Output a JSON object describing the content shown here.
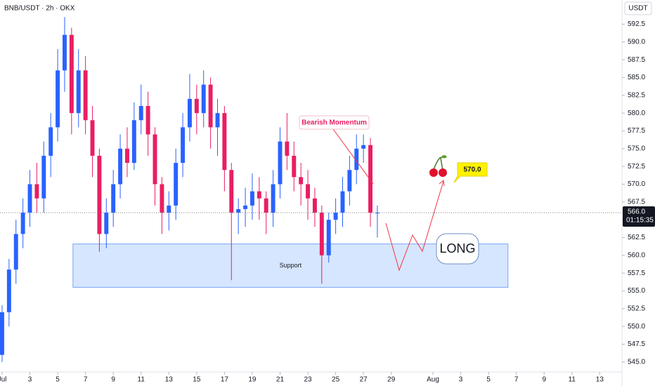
{
  "chart_data": {
    "type": "candlestick",
    "title": "BNB/USDT · 2h · OKX",
    "currency": "USDT",
    "up_color": "#2962ff",
    "down_color": "#e91e63",
    "x": [
      1,
      1.5,
      2,
      2.5,
      3,
      3.5,
      4,
      4.5,
      5,
      5.5,
      6,
      6.5,
      7,
      7.5,
      8,
      8.5,
      9,
      9.5,
      10,
      10.5,
      11,
      11.5,
      12,
      12.5,
      13,
      13.5,
      14,
      14.5,
      15,
      15.5,
      16,
      16.5,
      17,
      17.5,
      18,
      18.5,
      19,
      19.5,
      20,
      20.5,
      21,
      21.5,
      22,
      22.5,
      23,
      23.5,
      24,
      24.5,
      25,
      25.5,
      26,
      26.5,
      27,
      27.5,
      28
    ],
    "open": [
      546,
      552,
      558,
      563,
      566,
      570,
      568,
      574,
      578,
      586,
      591,
      580,
      586,
      579,
      574,
      563,
      566,
      570,
      575,
      573,
      579,
      581,
      577,
      570,
      566,
      567,
      573,
      578,
      582,
      580,
      584,
      578,
      580,
      572,
      566,
      566.5,
      567,
      569,
      568,
      566,
      570,
      576,
      574,
      571,
      570,
      568,
      566,
      560,
      565,
      566,
      569,
      572,
      575,
      575.5,
      566
    ],
    "high": [
      553,
      559.5,
      565,
      568,
      572,
      573,
      576,
      580,
      589,
      593.5,
      592,
      589,
      588,
      581,
      575,
      568,
      572,
      577,
      578,
      581.5,
      584,
      583,
      578,
      571,
      569,
      575,
      580,
      585.5,
      584,
      586,
      585,
      582,
      581,
      573,
      568,
      569.5,
      571.5,
      571,
      569,
      572,
      578,
      580,
      576,
      573,
      572,
      569.5,
      567,
      566,
      568,
      571,
      574,
      577,
      577,
      576.5,
      567
    ],
    "low": [
      545,
      550,
      556,
      561,
      564,
      566,
      566,
      571,
      576,
      583,
      577,
      578,
      577,
      571,
      560.5,
      561,
      564,
      568,
      571,
      572,
      577,
      574,
      567,
      563,
      563.5,
      565,
      571,
      576,
      577,
      578,
      575,
      574,
      569,
      556.5,
      563,
      564,
      565,
      565,
      563,
      564,
      568,
      572,
      569,
      567,
      565,
      564,
      556,
      559,
      563,
      564,
      567,
      570,
      573,
      564,
      562.5
    ],
    "close": [
      552,
      558,
      563,
      566,
      570,
      568,
      574,
      578,
      586,
      591,
      580,
      586,
      579,
      574,
      563,
      566,
      570,
      575,
      573,
      579,
      581,
      577,
      570,
      566,
      567,
      573,
      578,
      582,
      580,
      584,
      578,
      580,
      572,
      566,
      566.5,
      567,
      569,
      568,
      566,
      570,
      576,
      574,
      571,
      570,
      568,
      566,
      560,
      565,
      566,
      569,
      572,
      575,
      575.5,
      566,
      566
    ],
    "xlim": [
      0.85,
      45.6
    ],
    "ylim": [
      543.6,
      595.9
    ],
    "xticks": [
      {
        "value": 1,
        "label": "Jul"
      },
      3,
      5,
      7,
      9,
      11,
      13,
      15,
      17,
      19,
      21,
      23,
      25,
      27,
      29,
      {
        "value": 32,
        "label": "Aug"
      },
      {
        "value": 34,
        "label": "3"
      },
      {
        "value": 36,
        "label": "5"
      },
      {
        "value": 38,
        "label": "7"
      },
      {
        "value": 40,
        "label": "9"
      },
      {
        "value": 42,
        "label": "11"
      },
      {
        "value": 44,
        "label": "13"
      }
    ],
    "yticks": [
      592.5,
      {
        "value": 590,
        "label": "590.0"
      },
      587.5,
      {
        "value": 585,
        "label": "585.0"
      },
      582.5,
      {
        "value": 580,
        "label": "580.0"
      },
      577.5,
      {
        "value": 575,
        "label": "575.0"
      },
      572.5,
      {
        "value": 570,
        "label": "570.0"
      },
      567.5,
      {
        "value": 565,
        "label": "565.0"
      },
      562.5,
      {
        "value": 560,
        "label": "560.0"
      },
      557.5,
      {
        "value": 555,
        "label": "555.0"
      },
      552.5,
      {
        "value": 550,
        "label": "550.0"
      },
      547.5,
      {
        "value": 545,
        "label": "545.0"
      }
    ],
    "last_price": {
      "value": 566,
      "label": "566.0"
    },
    "countdown": "01:15:35",
    "support_zone": {
      "label": "Support",
      "x": [
        6.1,
        37.4
      ],
      "y": [
        555.5,
        561.6
      ]
    },
    "annotations": {
      "bearish": "Bearish Momentum",
      "target": "570.0",
      "long": "LONG"
    }
  }
}
